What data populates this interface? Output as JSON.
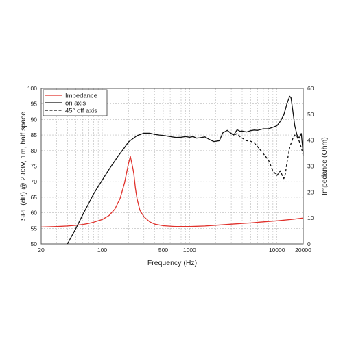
{
  "chart_data": {
    "type": "line",
    "title": "",
    "xlabel": "Frequency (Hz)",
    "ylabel": "SPL (dB) @ 2.83V, 1m, half space",
    "y2label": "Impedance (Ohm)",
    "x_scale": "log",
    "xlim": [
      20,
      20000
    ],
    "ylim": [
      50,
      100
    ],
    "y2lim": [
      0,
      60
    ],
    "grid": true,
    "legend_position": "top-left",
    "x_ticks": [
      "20",
      "100",
      "500",
      "1000",
      "10000",
      "20000"
    ],
    "y_ticks": [
      "50",
      "55",
      "60",
      "65",
      "70",
      "75",
      "80",
      "85",
      "90",
      "95",
      "100"
    ],
    "y2_ticks": [
      "0",
      "10",
      "20",
      "30",
      "40",
      "50",
      "60"
    ],
    "series": [
      {
        "name": "Impedance",
        "axis": "right",
        "color": "#e0312b",
        "style": "solid",
        "x": [
          20,
          30,
          40,
          50,
          60,
          70,
          80,
          100,
          120,
          140,
          160,
          180,
          200,
          210,
          220,
          225,
          230,
          240,
          250,
          270,
          300,
          350,
          400,
          500,
          700,
          1000,
          1500,
          2000,
          3000,
          5000,
          7000,
          10000,
          15000,
          20000
        ],
        "y": [
          6.5,
          6.7,
          6.9,
          7.2,
          7.5,
          7.9,
          8.4,
          9.4,
          11.0,
          13.5,
          17.5,
          23.5,
          31.0,
          33.8,
          30.5,
          29.0,
          27.0,
          21.5,
          17.5,
          13.0,
          10.5,
          8.5,
          7.6,
          7.0,
          6.7,
          6.7,
          6.9,
          7.2,
          7.6,
          8.1,
          8.5,
          8.9,
          9.5,
          10.0
        ]
      },
      {
        "name": "on axis",
        "axis": "left",
        "color": "#111111",
        "style": "solid",
        "x": [
          40,
          50,
          60,
          70,
          80,
          100,
          120,
          150,
          180,
          200,
          250,
          300,
          350,
          400,
          450,
          500,
          600,
          700,
          800,
          900,
          1000,
          1100,
          1200,
          1300,
          1500,
          1700,
          1900,
          2000,
          2200,
          2400,
          2700,
          3000,
          3200,
          3500,
          3800,
          4000,
          4500,
          5000,
          5500,
          6000,
          7000,
          8000,
          9000,
          10000,
          11000,
          12000,
          13000,
          14000,
          14500,
          15000,
          16000,
          17000,
          18000,
          19000,
          20000
        ],
        "y": [
          50,
          55,
          59.5,
          63,
          66.2,
          70.5,
          74,
          78,
          81,
          82.8,
          84.8,
          85.6,
          85.6,
          85.2,
          85.0,
          84.9,
          84.5,
          84.2,
          84.3,
          84.5,
          84.3,
          84.5,
          84.0,
          84.1,
          84.4,
          83.5,
          82.9,
          83.0,
          83.2,
          85.7,
          86.5,
          85.5,
          85.0,
          86.7,
          86.2,
          86.3,
          86.0,
          86.4,
          86.6,
          86.5,
          87.0,
          87.0,
          87.5,
          88.0,
          89.5,
          91.5,
          95.0,
          97.5,
          97.0,
          94.0,
          88.0,
          85.0,
          84.0,
          85.5,
          79.0
        ]
      },
      {
        "name": "45° off axis",
        "axis": "left",
        "color": "#111111",
        "style": "dashed",
        "x": [
          3000,
          3200,
          3500,
          3800,
          4000,
          4500,
          5000,
          5500,
          6000,
          7000,
          8000,
          9000,
          10000,
          11000,
          11500,
          12000,
          12500,
          13000,
          14000,
          15000,
          16000,
          17000,
          18000,
          19000,
          20000
        ],
        "y": [
          85.5,
          84.9,
          85.5,
          84.4,
          84.0,
          83.2,
          83.0,
          82.5,
          81.3,
          79.0,
          77.0,
          73.5,
          72.0,
          73.5,
          72.0,
          71.0,
          72.5,
          76.0,
          81.0,
          83.5,
          85.0,
          84.5,
          83.0,
          81.0,
          78.5
        ]
      }
    ]
  }
}
